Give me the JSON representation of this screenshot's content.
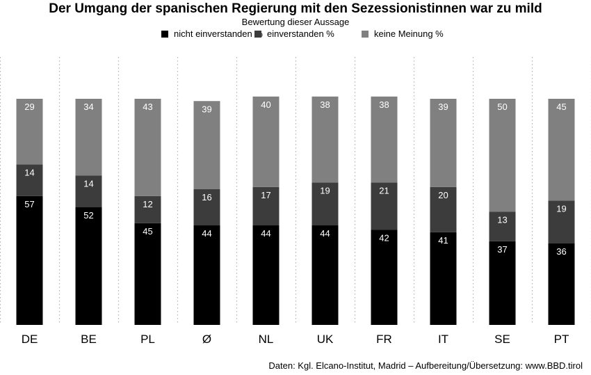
{
  "chart_data": {
    "type": "bar",
    "stacked": true,
    "title": "Der Umgang der spanischen Regierung mit den Sezessionistinnen war zu mild",
    "subtitle": "Bewertung dieser Aussage",
    "categories": [
      "DE",
      "BE",
      "PL",
      "Ø",
      "NL",
      "UK",
      "FR",
      "IT",
      "SE",
      "PT"
    ],
    "series": [
      {
        "name": "nicht einverstanden %",
        "color": "#000000",
        "label_color": "#ffffff",
        "values": [
          57,
          52,
          45,
          44,
          44,
          44,
          42,
          41,
          37,
          36
        ]
      },
      {
        "name": "einverstanden %",
        "color": "#3c3c3c",
        "label_color": "#ffffff",
        "values": [
          14,
          14,
          12,
          16,
          17,
          19,
          21,
          20,
          13,
          19
        ]
      },
      {
        "name": "keine Meinung %",
        "color": "#808080",
        "label_color": "#ffffff",
        "values": [
          29,
          34,
          43,
          39,
          40,
          38,
          38,
          39,
          50,
          45
        ]
      }
    ],
    "legend_position": "top",
    "grid": "vertical dotted separators",
    "ylim": [
      0,
      100
    ]
  },
  "source": "Daten: Kgl. Elcano-Institut, Madrid – Aufbereitung/Übersetzung: www.BBD.tirol"
}
